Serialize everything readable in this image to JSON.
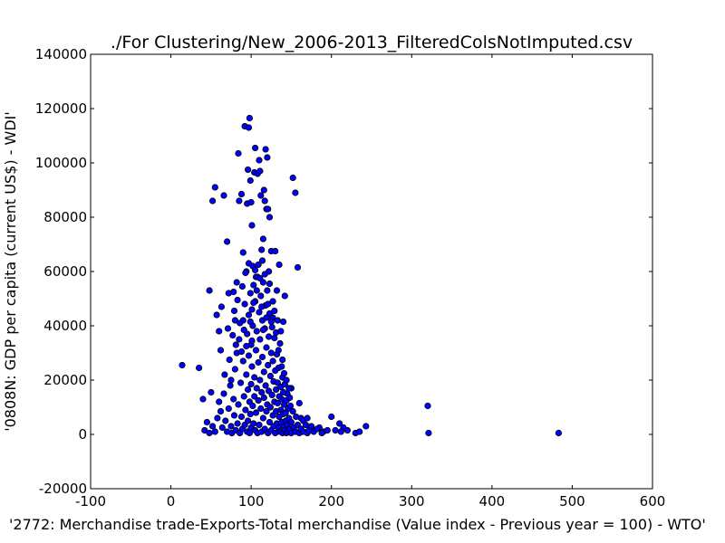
{
  "chart_data": {
    "type": "scatter",
    "title": "./For Clustering/New_2006-2013_FilteredColsNotImputed.csv",
    "xlabel": "'2772: Merchandise trade-Exports-Total merchandise (Value index - Previous year = 100) - WTO'",
    "ylabel": "'0808N: GDP per capita  (current US$) - WDI'",
    "xlim": [
      -100,
      600
    ],
    "ylim": [
      -20000,
      140000
    ],
    "xticks": [
      "-100",
      "0",
      "100",
      "200",
      "300",
      "400",
      "500",
      "600"
    ],
    "yticks": [
      "-20000",
      "0",
      "20000",
      "40000",
      "60000",
      "80000",
      "100000",
      "120000",
      "140000"
    ],
    "grid": false,
    "marker_color": "#0000ff",
    "marker_edge": "#000000",
    "points": [
      [
        14,
        25500
      ],
      [
        35,
        24500
      ],
      [
        40,
        13000
      ],
      [
        48,
        53000
      ],
      [
        50,
        15500
      ],
      [
        52,
        86000
      ],
      [
        55,
        91000
      ],
      [
        60,
        38000
      ],
      [
        63,
        47000
      ],
      [
        66,
        88000
      ],
      [
        70,
        71000
      ],
      [
        72,
        52000
      ],
      [
        75,
        20000
      ],
      [
        78,
        52500
      ],
      [
        80,
        42000
      ],
      [
        82,
        56000
      ],
      [
        84,
        103500
      ],
      [
        85,
        86000
      ],
      [
        88,
        88500
      ],
      [
        90,
        67000
      ],
      [
        92,
        113500
      ],
      [
        94,
        60000
      ],
      [
        95,
        85000
      ],
      [
        96,
        97500
      ],
      [
        97,
        113000
      ],
      [
        98,
        116500
      ],
      [
        99,
        93500
      ],
      [
        100,
        85500
      ],
      [
        101,
        77000
      ],
      [
        102,
        62000
      ],
      [
        104,
        96500
      ],
      [
        105,
        105500
      ],
      [
        106,
        58000
      ],
      [
        108,
        96000
      ],
      [
        110,
        101000
      ],
      [
        111,
        97000
      ],
      [
        112,
        88000
      ],
      [
        113,
        68000
      ],
      [
        114,
        64000
      ],
      [
        115,
        72000
      ],
      [
        116,
        90000
      ],
      [
        117,
        86000
      ],
      [
        118,
        105000
      ],
      [
        119,
        83000
      ],
      [
        120,
        102000
      ],
      [
        121,
        83000
      ],
      [
        122,
        60000
      ],
      [
        123,
        80000
      ],
      [
        125,
        67500
      ],
      [
        127,
        43000
      ],
      [
        130,
        67500
      ],
      [
        132,
        53000
      ],
      [
        133,
        42000
      ],
      [
        135,
        62500
      ],
      [
        138,
        25000
      ],
      [
        140,
        41500
      ],
      [
        142,
        51000
      ],
      [
        145,
        15000
      ],
      [
        150,
        17000
      ],
      [
        152,
        94500
      ],
      [
        155,
        89000
      ],
      [
        158,
        61500
      ],
      [
        160,
        11500
      ],
      [
        162,
        6000
      ],
      [
        165,
        5000
      ],
      [
        170,
        6000
      ],
      [
        175,
        3000
      ],
      [
        185,
        2500
      ],
      [
        190,
        1000
      ],
      [
        200,
        6500
      ],
      [
        205,
        1500
      ],
      [
        210,
        4000
      ],
      [
        215,
        2500
      ],
      [
        220,
        1500
      ],
      [
        230,
        500
      ],
      [
        235,
        1000
      ],
      [
        243,
        3000
      ],
      [
        320,
        10500
      ],
      [
        321,
        500
      ],
      [
        483,
        500
      ],
      [
        42,
        1500
      ],
      [
        45,
        4500
      ],
      [
        48,
        500
      ],
      [
        52,
        3000
      ],
      [
        55,
        1000
      ],
      [
        58,
        6000
      ],
      [
        60,
        12000
      ],
      [
        62,
        8500
      ],
      [
        64,
        2500
      ],
      [
        66,
        15000
      ],
      [
        68,
        5000
      ],
      [
        70,
        1000
      ],
      [
        72,
        9500
      ],
      [
        74,
        18000
      ],
      [
        75,
        3000
      ],
      [
        76,
        500
      ],
      [
        78,
        13000
      ],
      [
        79,
        7000
      ],
      [
        80,
        24000
      ],
      [
        81,
        1500
      ],
      [
        82,
        30000
      ],
      [
        83,
        4000
      ],
      [
        84,
        11000
      ],
      [
        85,
        35000
      ],
      [
        86,
        500
      ],
      [
        87,
        19000
      ],
      [
        88,
        6500
      ],
      [
        89,
        2000
      ],
      [
        90,
        42000
      ],
      [
        90,
        27000
      ],
      [
        91,
        14000
      ],
      [
        92,
        3500
      ],
      [
        92,
        48000
      ],
      [
        93,
        9000
      ],
      [
        94,
        22000
      ],
      [
        95,
        1000
      ],
      [
        95,
        37000
      ],
      [
        96,
        16500
      ],
      [
        96,
        5000
      ],
      [
        97,
        44000
      ],
      [
        97,
        29000
      ],
      [
        98,
        12000
      ],
      [
        98,
        500
      ],
      [
        99,
        52000
      ],
      [
        99,
        7500
      ],
      [
        100,
        33000
      ],
      [
        100,
        18500
      ],
      [
        100,
        2500
      ],
      [
        101,
        46000
      ],
      [
        101,
        25000
      ],
      [
        102,
        10500
      ],
      [
        102,
        40000
      ],
      [
        103,
        4000
      ],
      [
        103,
        55000
      ],
      [
        104,
        21000
      ],
      [
        104,
        14000
      ],
      [
        105,
        1500
      ],
      [
        105,
        49000
      ],
      [
        106,
        31000
      ],
      [
        106,
        8000
      ],
      [
        107,
        38000
      ],
      [
        107,
        17000
      ],
      [
        108,
        500
      ],
      [
        108,
        58000
      ],
      [
        109,
        26500
      ],
      [
        109,
        12500
      ],
      [
        110,
        45000
      ],
      [
        110,
        3500
      ],
      [
        111,
        35000
      ],
      [
        111,
        20000
      ],
      [
        112,
        9500
      ],
      [
        112,
        51000
      ],
      [
        113,
        15500
      ],
      [
        113,
        1000
      ],
      [
        114,
        42000
      ],
      [
        114,
        28500
      ],
      [
        115,
        6000
      ],
      [
        115,
        56000
      ],
      [
        116,
        23000
      ],
      [
        116,
        13500
      ],
      [
        117,
        39000
      ],
      [
        117,
        2000
      ],
      [
        118,
        47500
      ],
      [
        118,
        18000
      ],
      [
        119,
        32000
      ],
      [
        119,
        8500
      ],
      [
        120,
        11000
      ],
      [
        120,
        53000
      ],
      [
        121,
        25500
      ],
      [
        121,
        500
      ],
      [
        122,
        36000
      ],
      [
        122,
        16000
      ],
      [
        123,
        4500
      ],
      [
        123,
        44500
      ],
      [
        124,
        21500
      ],
      [
        124,
        10000
      ],
      [
        125,
        30000
      ],
      [
        125,
        1500
      ],
      [
        126,
        39500
      ],
      [
        126,
        14500
      ],
      [
        127,
        7000
      ],
      [
        127,
        27000
      ],
      [
        128,
        19500
      ],
      [
        128,
        3000
      ],
      [
        129,
        35500
      ],
      [
        129,
        12000
      ],
      [
        130,
        23500
      ],
      [
        130,
        500
      ],
      [
        131,
        16500
      ],
      [
        131,
        8500
      ],
      [
        132,
        29500
      ],
      [
        132,
        4000
      ],
      [
        133,
        19000
      ],
      [
        133,
        11500
      ],
      [
        134,
        2500
      ],
      [
        134,
        24500
      ],
      [
        135,
        14000
      ],
      [
        135,
        6500
      ],
      [
        136,
        33500
      ],
      [
        136,
        1000
      ],
      [
        137,
        17500
      ],
      [
        137,
        9000
      ],
      [
        138,
        4500
      ],
      [
        138,
        13000
      ],
      [
        139,
        21000
      ],
      [
        139,
        500
      ],
      [
        140,
        7500
      ],
      [
        140,
        15500
      ],
      [
        141,
        3000
      ],
      [
        141,
        11000
      ],
      [
        142,
        18500
      ],
      [
        142,
        1500
      ],
      [
        143,
        8000
      ],
      [
        143,
        5000
      ],
      [
        144,
        12500
      ],
      [
        144,
        500
      ],
      [
        145,
        3500
      ],
      [
        146,
        9500
      ],
      [
        146,
        1000
      ],
      [
        147,
        6000
      ],
      [
        148,
        2000
      ],
      [
        148,
        13500
      ],
      [
        150,
        4500
      ],
      [
        150,
        500
      ],
      [
        152,
        8500
      ],
      [
        153,
        2500
      ],
      [
        155,
        1000
      ],
      [
        156,
        6500
      ],
      [
        158,
        3500
      ],
      [
        160,
        500
      ],
      [
        162,
        2000
      ],
      [
        165,
        1000
      ],
      [
        168,
        3500
      ],
      [
        170,
        500
      ],
      [
        172,
        1500
      ],
      [
        178,
        1000
      ],
      [
        182,
        2000
      ],
      [
        188,
        500
      ],
      [
        195,
        1500
      ],
      [
        212,
        1000
      ],
      [
        57,
        44000
      ],
      [
        62,
        31000
      ],
      [
        67,
        22000
      ],
      [
        71,
        39000
      ],
      [
        73,
        27500
      ],
      [
        77,
        36500
      ],
      [
        79,
        45500
      ],
      [
        81,
        33000
      ],
      [
        83,
        49500
      ],
      [
        86,
        41000
      ],
      [
        88,
        30500
      ],
      [
        89,
        54500
      ],
      [
        91,
        38500
      ],
      [
        93,
        59500
      ],
      [
        94,
        32500
      ],
      [
        97,
        63000
      ],
      [
        99,
        41500
      ],
      [
        101,
        34500
      ],
      [
        103,
        48500
      ],
      [
        105,
        60500
      ],
      [
        107,
        53000
      ],
      [
        109,
        62500
      ],
      [
        111,
        57500
      ],
      [
        113,
        47000
      ],
      [
        115,
        38500
      ],
      [
        117,
        59000
      ],
      [
        119,
        43000
      ],
      [
        121,
        48000
      ],
      [
        123,
        55500
      ],
      [
        125,
        41500
      ],
      [
        127,
        49000
      ],
      [
        129,
        45500
      ],
      [
        131,
        37500
      ],
      [
        134,
        31000
      ],
      [
        137,
        38000
      ],
      [
        139,
        27500
      ],
      [
        141,
        22500
      ],
      [
        144,
        20000
      ],
      [
        147,
        17000
      ],
      [
        149,
        10500
      ]
    ]
  }
}
